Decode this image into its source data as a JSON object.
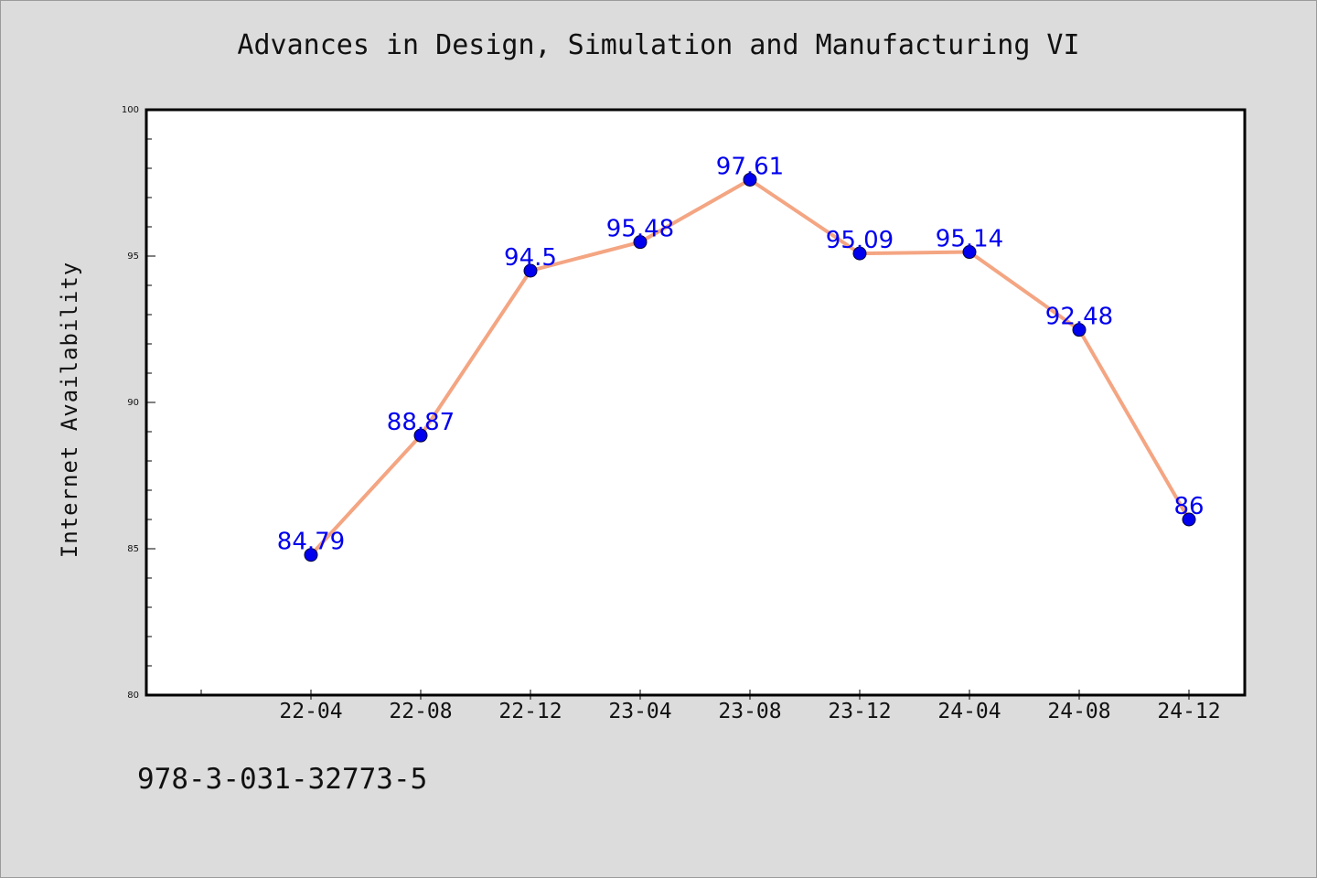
{
  "chart_data": {
    "type": "line",
    "title": "Advances in Design, Simulation and Manufacturing VI",
    "xlabel": "",
    "ylabel": "Internet Availability",
    "categories": [
      "22-04",
      "22-08",
      "22-12",
      "23-04",
      "23-08",
      "23-12",
      "24-04",
      "24-08",
      "24-12"
    ],
    "series": [
      {
        "values": [
          84.79,
          88.87,
          94.5,
          95.48,
          97.61,
          95.09,
          95.14,
          92.48,
          86
        ],
        "labels": [
          "84.79",
          "88.87",
          "94.5",
          "95.48",
          "97.61",
          "95.09",
          "95.14",
          "92.48",
          "86"
        ]
      }
    ],
    "ylim": [
      80,
      100
    ],
    "yticks": [
      "80",
      "85",
      "90",
      "95",
      "100"
    ],
    "grid": false,
    "colors": {
      "line": "#f4a582",
      "marker": "#0000ee",
      "label": "#0000ee",
      "background": "#dcdcdc",
      "plot_background": "#ffffff"
    }
  },
  "footer_text": "978-3-031-32773-5"
}
